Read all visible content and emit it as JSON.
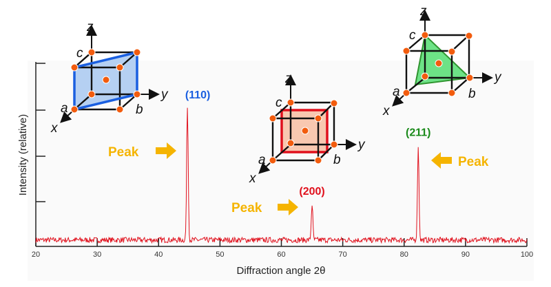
{
  "chart_data": {
    "type": "line",
    "xlabel": "Diffraction angle 2θ",
    "ylabel": "Intensity (relative)",
    "xlim": [
      20,
      100
    ],
    "xticks": [
      20,
      30,
      40,
      50,
      60,
      70,
      80,
      90,
      100
    ],
    "ylim": [
      0,
      1
    ],
    "grid": false,
    "line_color": "#e0101c",
    "baseline_intensity": 0.035,
    "peaks": [
      {
        "label": "(110)",
        "two_theta": 44.7,
        "intensity": 0.77,
        "color": "#1a5fe0"
      },
      {
        "label": "(200)",
        "two_theta": 65.0,
        "intensity": 0.23,
        "color": "#e0101c"
      },
      {
        "label": "(211)",
        "two_theta": 82.3,
        "intensity": 0.55,
        "color": "#1a8a1a"
      }
    ],
    "annotations": [
      {
        "text": "Peak",
        "color": "#f5b400",
        "arrow": "right",
        "points_to": "(110)"
      },
      {
        "text": "Peak",
        "color": "#f5b400",
        "arrow": "right",
        "points_to": "(200)"
      },
      {
        "text": "Peak",
        "color": "#f5b400",
        "arrow": "left",
        "points_to": "(211)"
      }
    ]
  },
  "cells": {
    "axis_labels": {
      "x": "x",
      "y": "y",
      "z": "z",
      "a": "a",
      "b": "b",
      "c": "c"
    },
    "plane_110_color": "#a8c8f0",
    "plane_200_color": "#f8c8b0",
    "plane_211_color": "#5ee07a",
    "atom_color": "#f25c0e"
  }
}
